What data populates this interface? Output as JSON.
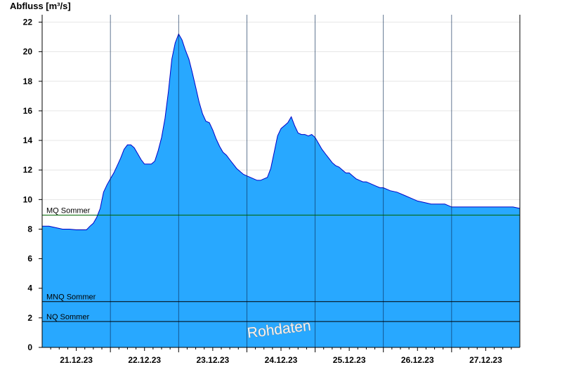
{
  "chart_data": {
    "type": "area",
    "ylabel": "Abfluss [m³/s]",
    "ylim": [
      0,
      22.5
    ],
    "yticks": [
      0,
      2,
      4,
      6,
      8,
      10,
      12,
      14,
      16,
      18,
      20,
      22
    ],
    "xlim": [
      0,
      7
    ],
    "xticks": [
      {
        "x": 0.5,
        "label": "21.12.23"
      },
      {
        "x": 1.5,
        "label": "22.12.23"
      },
      {
        "x": 2.5,
        "label": "23.12.23"
      },
      {
        "x": 3.5,
        "label": "24.12.23"
      },
      {
        "x": 4.5,
        "label": "25.12.23"
      },
      {
        "x": 5.5,
        "label": "26.12.23"
      },
      {
        "x": 6.5,
        "label": "27.12.23"
      }
    ],
    "day_boundaries": [
      1,
      2,
      3,
      4,
      5,
      6
    ],
    "grid": true,
    "fill_color": "#28a8ff",
    "line_color": "#0000c8",
    "reference_lines": [
      {
        "label": "MQ Sommer",
        "value": 8.95,
        "color": "#006400"
      },
      {
        "label": "MNQ Sommer",
        "value": 3.1,
        "color": "#000000"
      },
      {
        "label": "NQ Sommer",
        "value": 1.75,
        "color": "#000000"
      }
    ],
    "watermark": "Rohdaten",
    "series": [
      {
        "x": [
          0,
          0.1,
          0.2,
          0.3,
          0.4,
          0.5,
          0.6,
          0.65,
          0.7,
          0.75,
          0.8,
          0.85,
          0.9,
          0.95,
          1.0,
          1.05,
          1.1,
          1.15,
          1.2,
          1.25,
          1.3,
          1.35,
          1.4,
          1.45,
          1.5,
          1.55,
          1.6,
          1.65,
          1.7,
          1.75,
          1.8,
          1.85,
          1.9,
          1.95,
          2.0,
          2.05,
          2.1,
          2.15,
          2.2,
          2.25,
          2.3,
          2.35,
          2.4,
          2.45,
          2.5,
          2.55,
          2.6,
          2.65,
          2.7,
          2.75,
          2.8,
          2.85,
          2.9,
          2.95,
          3.0,
          3.05,
          3.1,
          3.15,
          3.2,
          3.25,
          3.3,
          3.35,
          3.4,
          3.45,
          3.5,
          3.55,
          3.6,
          3.65,
          3.7,
          3.75,
          3.8,
          3.85,
          3.9,
          3.95,
          4.0,
          4.05,
          4.1,
          4.15,
          4.2,
          4.25,
          4.3,
          4.35,
          4.4,
          4.45,
          4.5,
          4.55,
          4.6,
          4.65,
          4.7,
          4.75,
          4.8,
          4.85,
          4.9,
          4.95,
          5.0,
          5.1,
          5.2,
          5.3,
          5.4,
          5.5,
          5.6,
          5.7,
          5.8,
          5.9,
          6.0,
          6.1,
          6.2,
          6.3,
          6.4,
          6.5,
          6.6,
          6.7,
          6.8,
          6.9,
          6.95,
          7.0
        ],
        "y": [
          8.2,
          8.2,
          8.1,
          8.0,
          8.0,
          7.95,
          7.95,
          7.95,
          8.2,
          8.4,
          8.8,
          9.4,
          10.5,
          11.0,
          11.4,
          11.8,
          12.3,
          12.8,
          13.4,
          13.7,
          13.7,
          13.5,
          13.1,
          12.7,
          12.4,
          12.4,
          12.4,
          12.6,
          13.3,
          14.2,
          15.5,
          17.3,
          19.5,
          20.6,
          21.2,
          20.8,
          20.1,
          19.5,
          18.6,
          17.6,
          16.6,
          15.8,
          15.3,
          15.2,
          14.7,
          14.1,
          13.6,
          13.2,
          13.0,
          12.7,
          12.4,
          12.1,
          11.9,
          11.7,
          11.6,
          11.5,
          11.4,
          11.3,
          11.3,
          11.4,
          11.5,
          12.1,
          13.2,
          14.3,
          14.8,
          15.0,
          15.2,
          15.6,
          15.0,
          14.5,
          14.4,
          14.4,
          14.3,
          14.4,
          14.2,
          13.8,
          13.4,
          13.1,
          12.8,
          12.5,
          12.3,
          12.2,
          12.0,
          11.8,
          11.8,
          11.6,
          11.4,
          11.3,
          11.2,
          11.2,
          11.1,
          11.0,
          10.9,
          10.8,
          10.8,
          10.6,
          10.5,
          10.3,
          10.1,
          9.9,
          9.8,
          9.7,
          9.7,
          9.7,
          9.5,
          9.5,
          9.5,
          9.5,
          9.5,
          9.5,
          9.5,
          9.5,
          9.5,
          9.5,
          9.45,
          9.4
        ]
      }
    ]
  }
}
